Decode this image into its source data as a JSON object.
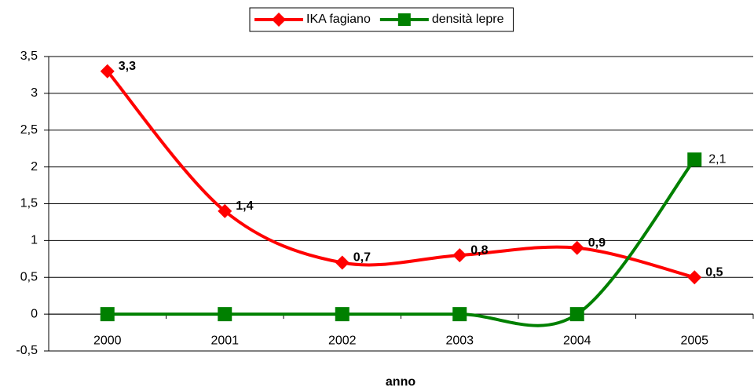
{
  "chart_data": {
    "type": "line",
    "x_label": "anno",
    "categories": [
      "2000",
      "2001",
      "2002",
      "2003",
      "2004",
      "2005"
    ],
    "series": [
      {
        "name": "IKA fagiano",
        "color": "#ff0000",
        "marker": "diamond",
        "smooth": true,
        "values": [
          3.3,
          1.4,
          0.7,
          0.8,
          0.9,
          0.5
        ],
        "value_labels": [
          "3,3",
          "1,4",
          "0,7",
          "0,8",
          "0,9",
          "0,5"
        ]
      },
      {
        "name": "densità lepre",
        "color": "#008000",
        "marker": "square",
        "smooth": true,
        "values": [
          0,
          0,
          0,
          0,
          0,
          2.1
        ],
        "value_labels": [
          null,
          null,
          null,
          null,
          null,
          "2,1"
        ]
      }
    ],
    "ylim": [
      -0.5,
      3.5
    ],
    "yticks": [
      {
        "value": -0.5,
        "label": "-0,5"
      },
      0,
      {
        "value": 0.5,
        "label": "0,5"
      },
      1,
      {
        "value": 1.5,
        "label": "1,5"
      },
      2,
      {
        "value": 2.5,
        "label": "2,5"
      },
      3,
      {
        "value": 3.5,
        "label": "3,5"
      }
    ],
    "grid": true,
    "legend": "top"
  }
}
